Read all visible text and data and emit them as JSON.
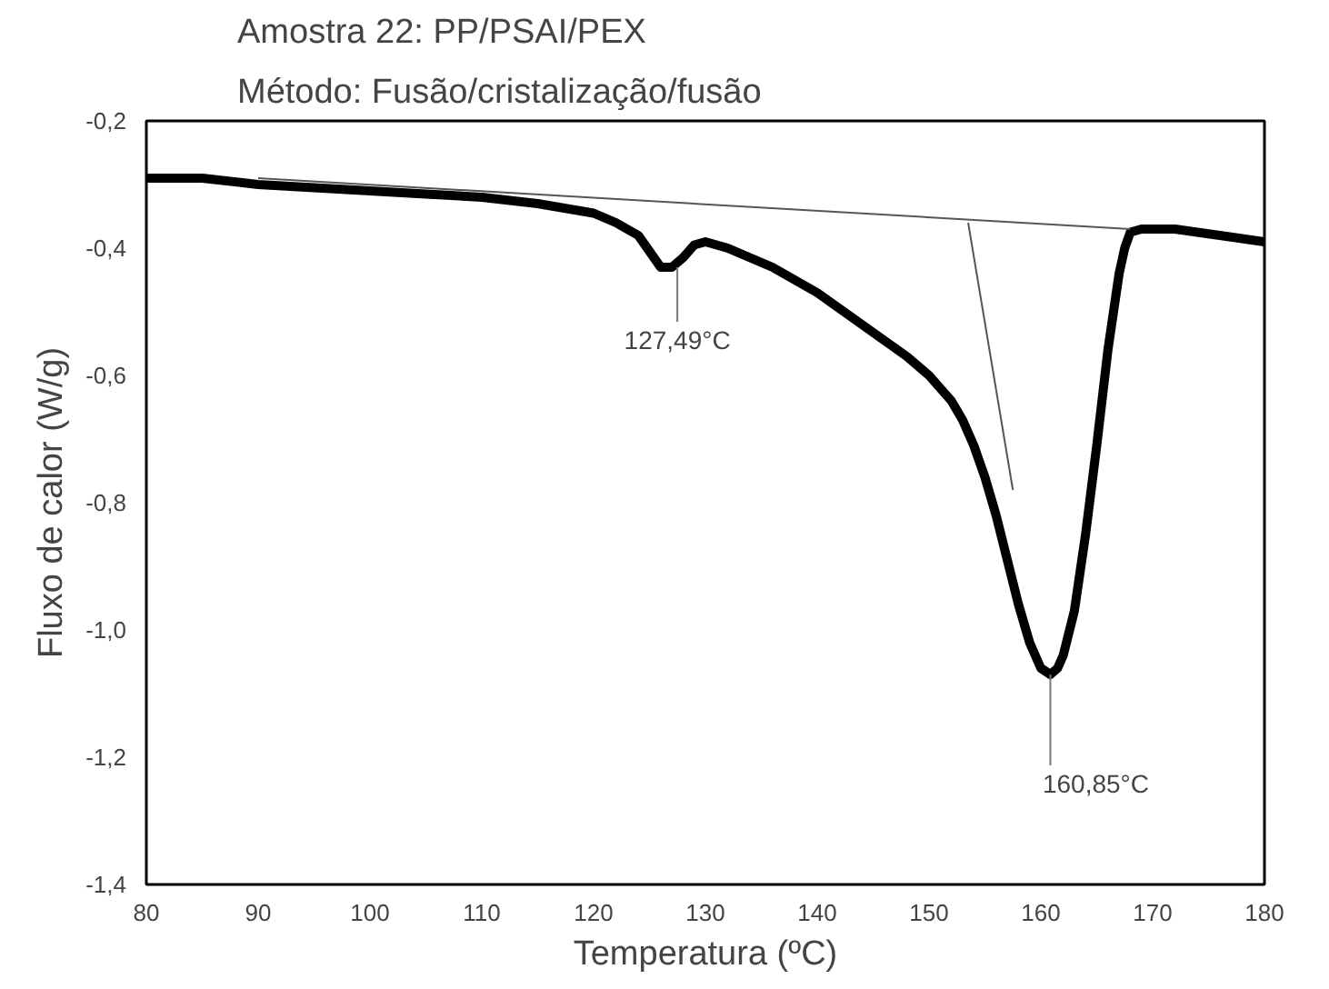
{
  "chart_data": {
    "type": "line",
    "title": "Amostra 22: PP/PSAI/PEX",
    "subtitle": "Método: Fusão/cristalização/fusão",
    "xlabel": "Temperatura (ºC)",
    "ylabel": "Fluxo de calor (W/g)",
    "series": [
      {
        "color": "#000000",
        "x": [
          80,
          85,
          90,
          95,
          100,
          105,
          110,
          115,
          120,
          122,
          124,
          125,
          126,
          127,
          128,
          129,
          130,
          131,
          132,
          134,
          136,
          138,
          140,
          142,
          144,
          146,
          148,
          150,
          152,
          153,
          154,
          155,
          156,
          157,
          158,
          159,
          160,
          160.85,
          161.5,
          162,
          163,
          164,
          165,
          166,
          167,
          167.5,
          168,
          169,
          170,
          172,
          174,
          176,
          178,
          180
        ],
        "values": [
          -0.29,
          -0.29,
          -0.3,
          -0.305,
          -0.31,
          -0.315,
          -0.32,
          -0.33,
          -0.345,
          -0.36,
          -0.38,
          -0.405,
          -0.43,
          -0.43,
          -0.415,
          -0.395,
          -0.39,
          -0.395,
          -0.4,
          -0.415,
          -0.43,
          -0.45,
          -0.47,
          -0.495,
          -0.52,
          -0.545,
          -0.57,
          -0.6,
          -0.64,
          -0.67,
          -0.71,
          -0.76,
          -0.82,
          -0.89,
          -0.96,
          -1.02,
          -1.06,
          -1.07,
          -1.06,
          -1.04,
          -0.97,
          -0.85,
          -0.71,
          -0.56,
          -0.44,
          -0.4,
          -0.375,
          -0.37,
          -0.37,
          -0.37,
          -0.375,
          -0.38,
          -0.385,
          -0.39
        ]
      },
      {
        "color": "#555555",
        "type": "line",
        "line_style": "solid",
        "x": [
          90,
          168
        ],
        "values": [
          -0.29,
          -0.37
        ]
      },
      {
        "color": "#555555",
        "type": "line",
        "line_style": "solid",
        "x": [
          153.5,
          157.5
        ],
        "values": [
          -0.36,
          -0.78
        ]
      }
    ],
    "annotations": [
      {
        "text": "127,49°C",
        "x": 127.49,
        "y": -0.43
      },
      {
        "text": "160,85°C",
        "x": 160.85,
        "y": -1.07
      }
    ],
    "xlim": [
      80,
      180
    ],
    "xticks": [
      80,
      90,
      100,
      110,
      120,
      130,
      140,
      150,
      160,
      170,
      180
    ],
    "ylim": [
      -1.4,
      -0.2
    ],
    "yticks": [
      {
        "value": -1.4,
        "label": "-1,4"
      },
      {
        "value": -1.2,
        "label": "-1,2"
      },
      {
        "value": -1.0,
        "label": "-1,0"
      },
      {
        "value": -0.8,
        "label": "-0,8"
      },
      {
        "value": -0.6,
        "label": "-0,6"
      },
      {
        "value": -0.4,
        "label": "-0,4"
      },
      {
        "value": -0.2,
        "label": "-0,2"
      }
    ],
    "grid": false
  }
}
